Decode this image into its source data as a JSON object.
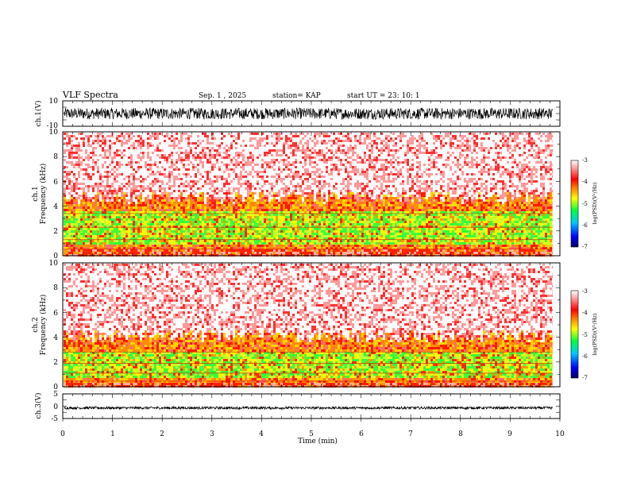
{
  "header": {
    "title": "VLF Spectra",
    "date": "Sep. 1 , 2025",
    "station": "station= KAP",
    "start": "start UT = 23: 10: 1"
  },
  "chart_data": [
    {
      "id": "ch1_waveform",
      "type": "line",
      "ylabel": "ch.1(V)",
      "ylim": [
        -10,
        10
      ],
      "yticks": [
        "10",
        "-10"
      ],
      "trace_range_v": [
        -4.5,
        4.5
      ],
      "data_end_min": 9.85
    },
    {
      "id": "ch1_spectrogram",
      "type": "heatmap",
      "ylabel_channel": "ch.1",
      "ylabel": "Frequency (kHz)",
      "ylim": [
        0,
        10
      ],
      "yticks": [
        "0",
        "2",
        "4",
        "6",
        "8",
        "10"
      ],
      "xlim": [
        0,
        10
      ],
      "data_end_min": 9.85,
      "emission_band_khz": [
        0.6,
        4.8
      ],
      "intense_band_khz": [
        1.0,
        3.6
      ],
      "colorbar": {
        "label": "log(PSD)(V²/Hz)",
        "range": [
          -7,
          -3
        ],
        "ticks": [
          "-3",
          "-4",
          "-5",
          "-6",
          "-7"
        ]
      }
    },
    {
      "id": "ch2_spectrogram",
      "type": "heatmap",
      "ylabel_channel": "ch.2",
      "ylabel": "Frequency (kHz)",
      "ylim": [
        0,
        10
      ],
      "yticks": [
        "0",
        "2",
        "4",
        "6",
        "8",
        "10"
      ],
      "xlim": [
        0,
        10
      ],
      "data_end_min": 9.85,
      "emission_band_khz": [
        0.5,
        4.2
      ],
      "intense_band_khz": [
        0.8,
        3.0
      ],
      "colorbar": {
        "label": "log(PSD)(V²/Hz)",
        "range": [
          -7,
          -3
        ],
        "ticks": [
          "-3",
          "-4",
          "-5",
          "-6",
          "-7"
        ]
      }
    },
    {
      "id": "ch3_waveform",
      "type": "line",
      "ylabel": "ch.3(V)",
      "ylim": [
        -5,
        5
      ],
      "yticks": [
        "5",
        "0",
        "-5"
      ],
      "trace_range_v": [
        -1.2,
        -0.2
      ],
      "data_end_min": 9.85
    }
  ],
  "xaxis": {
    "label": "Time (min)",
    "range": [
      0,
      10
    ],
    "ticks": [
      "0",
      "1",
      "2",
      "3",
      "4",
      "5",
      "6",
      "7",
      "8",
      "9",
      "10"
    ]
  }
}
